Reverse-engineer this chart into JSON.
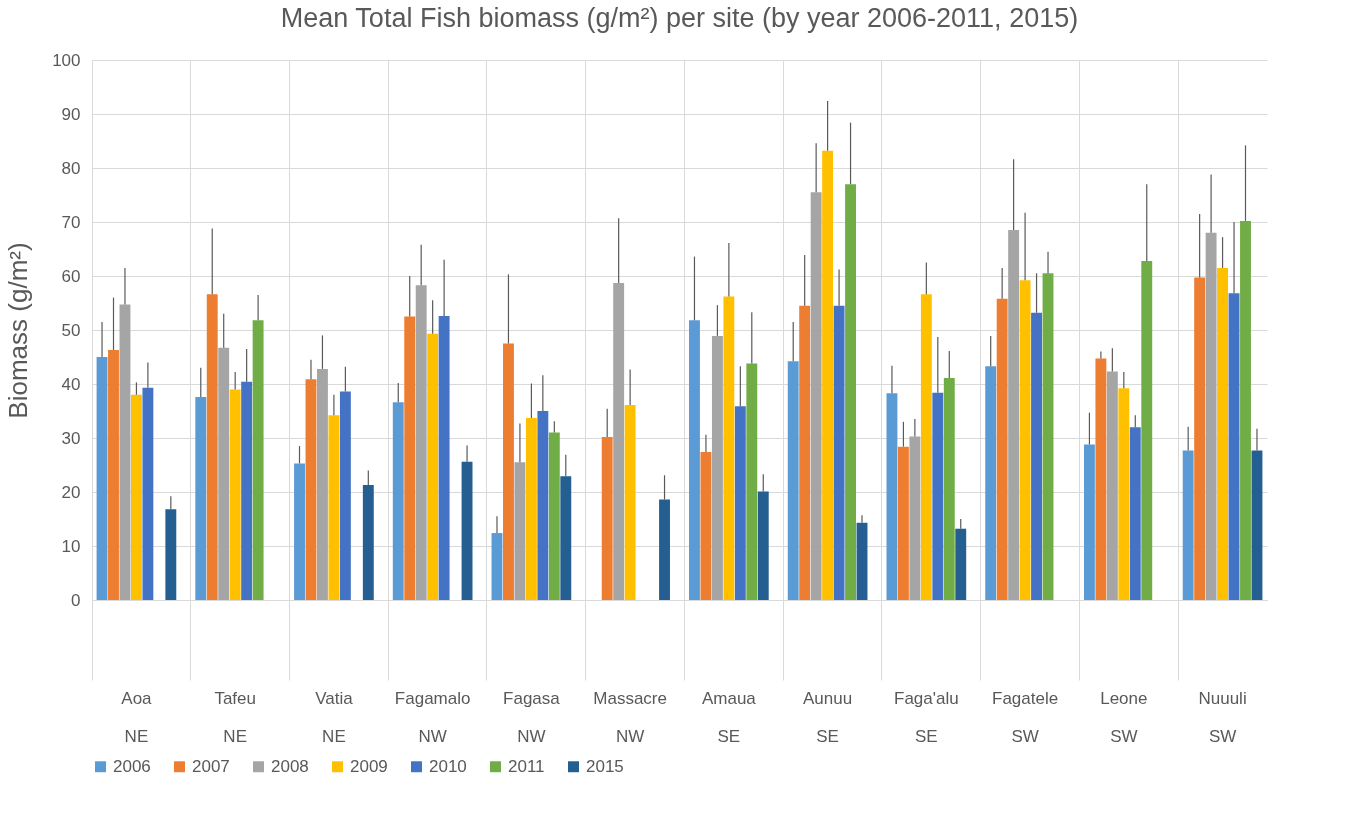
{
  "chart_data": {
    "type": "bar",
    "title": "Mean Total Fish biomass (g/m²) per site (by year 2006-2011, 2015)",
    "ylabel": "Biomass (g/m²)",
    "categories": [
      "Aoa\nNE",
      "Tafeu\nNE",
      "Vatia\nNE",
      "Fagamalo\nNW",
      "Fagasa\nNW",
      "Massacre\nNW",
      "Amaua\nSE",
      "Aunuu\nSE",
      "Faga'alu\nSE",
      "Fagatele\nSW",
      "Leone\nSW",
      "Nuuuli\nSW"
    ],
    "ylim": [
      0,
      100
    ],
    "yticks": [
      0,
      10,
      20,
      30,
      40,
      50,
      60,
      70,
      80,
      90,
      100
    ],
    "grid": "y",
    "legend": "bottom",
    "series": [
      {
        "name": "2006",
        "color": "#5b9bd5",
        "values": [
          45,
          37.6,
          25.3,
          36.6,
          12.4,
          null,
          51.8,
          44.2,
          38.3,
          43.3,
          28.8,
          27.7
        ],
        "errors": [
          [
            45,
            51.5
          ],
          [
            37.6,
            43
          ],
          [
            25.3,
            28.5
          ],
          [
            36.6,
            40.2
          ],
          [
            12.4,
            15.5
          ],
          null,
          [
            51.8,
            63.6
          ],
          [
            44.2,
            51.5
          ],
          [
            38.3,
            43.4
          ],
          [
            43.3,
            48.9
          ],
          [
            28.8,
            34.7
          ],
          [
            27.7,
            32.1
          ]
        ]
      },
      {
        "name": "2007",
        "color": "#ed7d31",
        "values": [
          46.3,
          56.6,
          40.9,
          52.5,
          47.5,
          30.2,
          27.4,
          54.5,
          28.4,
          55.8,
          44.7,
          59.7
        ],
        "errors": [
          [
            46.3,
            56
          ],
          [
            56.6,
            68.8
          ],
          [
            40.9,
            44.5
          ],
          [
            52.5,
            60
          ],
          [
            47.5,
            60.3
          ],
          [
            30.2,
            35.4
          ],
          [
            27.4,
            30.6
          ],
          [
            54.5,
            63.9
          ],
          [
            28.4,
            33
          ],
          [
            55.8,
            61.5
          ],
          [
            44.7,
            46
          ],
          [
            59.7,
            71.5
          ]
        ]
      },
      {
        "name": "2008",
        "color": "#a5a5a5",
        "values": [
          54.7,
          46.7,
          42.8,
          58.3,
          25.5,
          58.7,
          48.9,
          75.5,
          30.3,
          68.5,
          42.3,
          68
        ],
        "errors": [
          [
            54.7,
            61.5
          ],
          [
            46.7,
            53
          ],
          [
            42.8,
            49
          ],
          [
            58.3,
            65.8
          ],
          [
            25.5,
            32.7
          ],
          [
            58.7,
            70.7
          ],
          [
            48.9,
            54.6
          ],
          [
            75.5,
            84.6
          ],
          [
            30.3,
            33.5
          ],
          [
            68.5,
            81.6
          ],
          [
            42.3,
            46.6
          ],
          [
            68,
            78.8
          ]
        ]
      },
      {
        "name": "2009",
        "color": "#ffc000",
        "values": [
          38,
          39,
          34.2,
          49.3,
          33.7,
          36.1,
          56.2,
          83.2,
          56.6,
          59.2,
          39.2,
          61.5
        ],
        "errors": [
          [
            38,
            40.3
          ],
          [
            39,
            42.2
          ],
          [
            34.2,
            38
          ],
          [
            49.3,
            55.5
          ],
          [
            33.7,
            40.1
          ],
          [
            36.1,
            42.7
          ],
          [
            56.2,
            66.1
          ],
          [
            83.2,
            92.4
          ],
          [
            56.6,
            62.5
          ],
          [
            59.2,
            71.7
          ],
          [
            39.2,
            42.2
          ],
          [
            61.5,
            67.2
          ]
        ]
      },
      {
        "name": "2010",
        "color": "#4472c4",
        "values": [
          39.3,
          40.4,
          38.6,
          52.6,
          35,
          null,
          35.9,
          54.5,
          38.4,
          53.2,
          32,
          56.8
        ],
        "errors": [
          [
            39.3,
            44
          ],
          [
            40.4,
            46.5
          ],
          [
            38.6,
            43.2
          ],
          [
            52.6,
            63
          ],
          [
            35,
            41.6
          ],
          null,
          [
            35.9,
            43.3
          ],
          [
            54.5,
            61.2
          ],
          [
            38.4,
            48.7
          ],
          [
            53.2,
            60.5
          ],
          [
            32,
            34.2
          ],
          [
            56.8,
            70
          ]
        ]
      },
      {
        "name": "2011",
        "color": "#70ad47",
        "values": [
          null,
          51.8,
          null,
          null,
          31,
          null,
          43.8,
          77,
          41.1,
          60.5,
          62.8,
          70.2
        ],
        "errors": [
          null,
          [
            51.8,
            56.5
          ],
          null,
          null,
          [
            31,
            33.1
          ],
          null,
          [
            43.8,
            53.3
          ],
          [
            77,
            88.4
          ],
          [
            41.1,
            46.1
          ],
          [
            60.5,
            64.5
          ],
          [
            62.8,
            77
          ],
          [
            70.2,
            84.2
          ]
        ]
      },
      {
        "name": "2015",
        "color": "#255e91",
        "values": [
          16.8,
          null,
          21.3,
          25.6,
          22.9,
          18.6,
          20.1,
          14.3,
          13.2,
          null,
          null,
          27.7
        ],
        "errors": [
          [
            16.8,
            19.2
          ],
          null,
          [
            21.3,
            24
          ],
          [
            25.6,
            28.6
          ],
          [
            22.9,
            26.9
          ],
          [
            18.6,
            23.1
          ],
          [
            20.1,
            23.3
          ],
          [
            14.3,
            15.7
          ],
          [
            13.2,
            15
          ],
          null,
          null,
          [
            27.7,
            31.7
          ]
        ]
      }
    ]
  }
}
